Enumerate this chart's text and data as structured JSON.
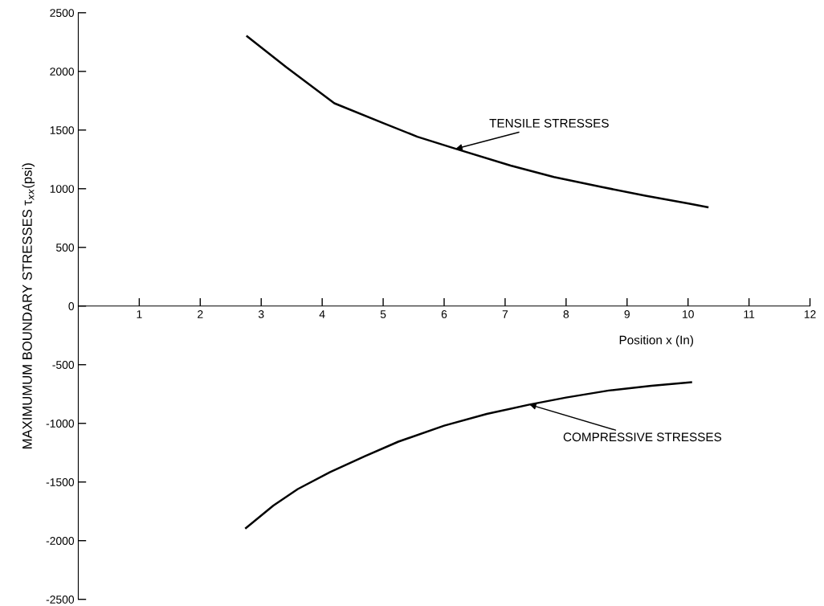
{
  "chart_data": {
    "type": "line",
    "xlabel": "Position x (In)",
    "ylabel": "MAXIMUMUM BOUNDARY STRESSES τ$_{xx}$(psi)",
    "xlim": [
      0,
      12
    ],
    "xticks": [
      1,
      2,
      3,
      4,
      5,
      6,
      7,
      8,
      9,
      10,
      11,
      12
    ],
    "ylim": [
      -2500,
      2500
    ],
    "yticks": [
      -2500,
      -2000,
      -1500,
      -1000,
      -500,
      0,
      500,
      1000,
      1500,
      2000,
      2500
    ],
    "grid": false,
    "marker": "none",
    "line_style": "solid",
    "series": [
      {
        "color": "#000000",
        "x": [
          2.77,
          3.41,
          4.2,
          5.0,
          5.56,
          6.19,
          7.09,
          7.8,
          8.59,
          9.3,
          10.01,
          10.32
        ],
        "values": [
          2298,
          2036,
          1728,
          1560,
          1443,
          1340,
          1197,
          1100,
          1014,
          940,
          873,
          843
        ]
      },
      {
        "color": "#000000",
        "x": [
          2.75,
          3.2,
          3.6,
          4.13,
          4.7,
          5.25,
          6.0,
          6.7,
          7.4,
          8.0,
          8.7,
          9.4,
          10.05
        ],
        "values": [
          -1892,
          -1700,
          -1560,
          -1416,
          -1280,
          -1156,
          -1020,
          -920,
          -840,
          -780,
          -720,
          -680,
          -650
        ]
      }
    ],
    "annotations": [
      {
        "text": "TENSILE STRESSES",
        "x": 6.19,
        "y": 1340
      },
      {
        "text": "COMPRESSIVE STRESSES",
        "x": 7.4,
        "y": -840
      }
    ]
  }
}
